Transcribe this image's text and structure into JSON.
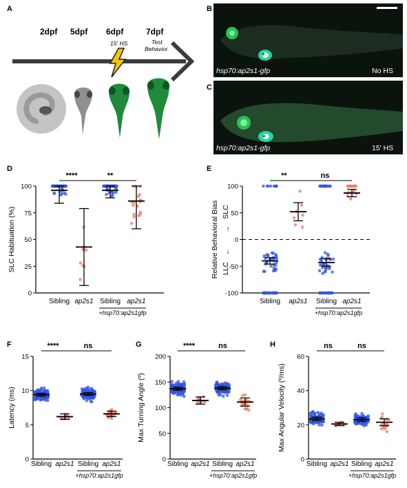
{
  "panels": {
    "a": "A",
    "b": "B",
    "c": "C",
    "d": "D",
    "e": "E",
    "f": "F",
    "g": "G",
    "h": "H"
  },
  "timeline": {
    "days": [
      "2dpf",
      "5dpf",
      "6dpf",
      "7dpf"
    ],
    "hs_label": "15' HS",
    "test_label_1": "Test",
    "test_label_2": "Behavior"
  },
  "images": {
    "b_label_left": "hsp70:ap2s1-gfp",
    "b_label_right": "No HS",
    "c_label_left": "hsp70:ap2s1-gfp",
    "c_label_right": "15' HS",
    "asterisk": "*"
  },
  "colors": {
    "sibling": "#3355e0",
    "ap2s1": "#f07860",
    "gfp_green": "#1f8a3a",
    "fluor_bg": "#0a140d"
  },
  "x_labels": {
    "sibling": "Sibling",
    "ap2s1": "ap2s1",
    "transgene": "+hsp70:ap2s1gfp"
  },
  "chart_data": [
    {
      "panel": "D",
      "type": "scatter",
      "ylabel": "SLC Habituation (%)",
      "ylim": [
        0,
        100
      ],
      "yticks": [
        0,
        25,
        50,
        75,
        100
      ],
      "categories": [
        "Sibling",
        "ap2s1",
        "Sibling",
        "ap2s1"
      ],
      "group": "+hsp70:ap2s1gfp",
      "mean": [
        96,
        43,
        96,
        86
      ],
      "error_low": [
        84,
        7,
        89,
        60
      ],
      "error_high": [
        100,
        79,
        100,
        100
      ],
      "significance": [
        "****",
        "**"
      ]
    },
    {
      "panel": "E",
      "type": "scatter",
      "ylabel": "Relative Behavioral Bias",
      "ylabel_top": "SLC",
      "ylabel_bottom": "LLC",
      "ylim": [
        -100,
        100
      ],
      "yticks": [
        -100,
        -50,
        0,
        50,
        100
      ],
      "categories": [
        "Sibling",
        "ap2s1",
        "Sibling",
        "ap2s1"
      ],
      "group": "+hsp70:ap2s1gfp",
      "mean": [
        -40,
        52,
        -43,
        87
      ],
      "error_low": [
        -46,
        35,
        -50,
        80
      ],
      "error_high": [
        -34,
        69,
        -36,
        94
      ],
      "significance": [
        "**",
        "ns"
      ]
    },
    {
      "panel": "F",
      "type": "scatter",
      "ylabel": "Latency (ms)",
      "ylim": [
        0,
        15
      ],
      "yticks": [
        0,
        5,
        10,
        15
      ],
      "categories": [
        "Sibling",
        "ap2s1",
        "Sibling",
        "ap2s1"
      ],
      "group": "+hsp70:ap2s1gfp",
      "mean": [
        9.4,
        6.2,
        9.5,
        6.6
      ],
      "error_low": [
        9.2,
        5.8,
        9.3,
        6.2
      ],
      "error_high": [
        9.6,
        6.6,
        9.7,
        7.0
      ],
      "significance": [
        "****",
        "ns"
      ]
    },
    {
      "panel": "G",
      "type": "scatter",
      "ylabel": "Max Turning Angle (º)",
      "ylim": [
        0,
        200
      ],
      "yticks": [
        0,
        50,
        100,
        150,
        200
      ],
      "categories": [
        "Sibling",
        "ap2s1",
        "Sibling",
        "ap2s1"
      ],
      "group": "+hsp70:ap2s1gfp",
      "mean": [
        137,
        114,
        138,
        111
      ],
      "error_low": [
        134,
        107,
        135,
        103
      ],
      "error_high": [
        140,
        121,
        141,
        119
      ],
      "significance": [
        "****",
        "ns"
      ]
    },
    {
      "panel": "H",
      "type": "scatter",
      "ylabel": "Max Angular Velocity (º/ms)",
      "ylim": [
        0,
        60
      ],
      "yticks": [
        0,
        20,
        40,
        60
      ],
      "categories": [
        "Sibling",
        "ap2s1",
        "Sibling",
        "ap2s1"
      ],
      "group": "+hsp70:ap2s1gfp",
      "mean": [
        23.5,
        20.5,
        23,
        21.5
      ],
      "error_low": [
        22.5,
        19.5,
        22,
        19.5
      ],
      "error_high": [
        24.5,
        21.5,
        24,
        23.5
      ],
      "significance": [
        "ns",
        "ns"
      ]
    }
  ]
}
